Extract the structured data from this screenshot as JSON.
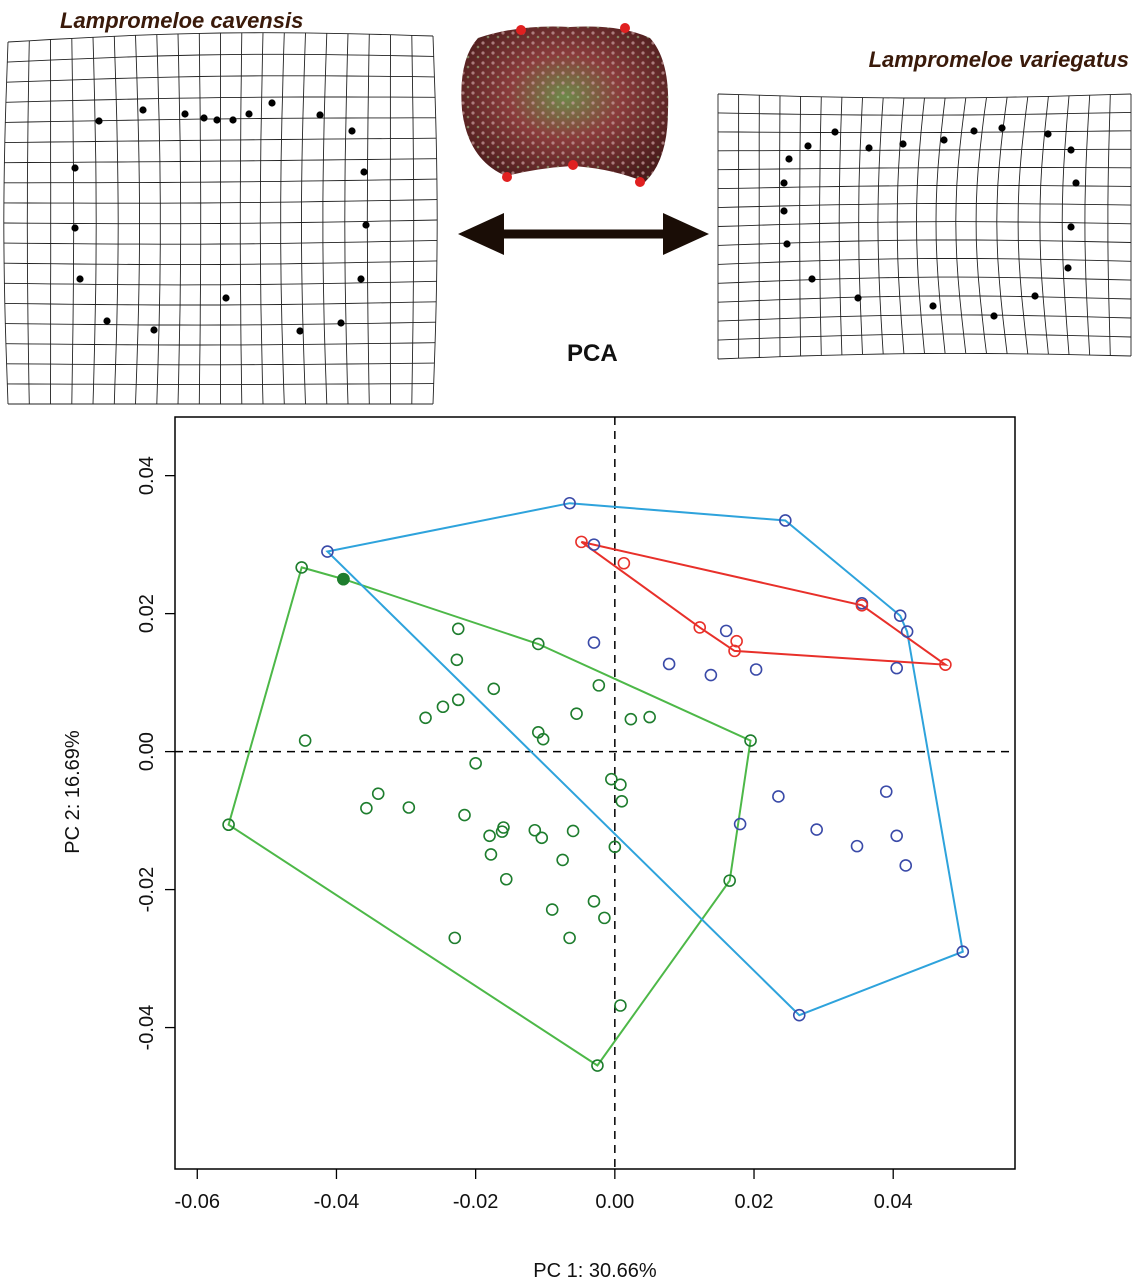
{
  "header": {
    "species_left": "Lampromeloe cavensis",
    "species_right": "Lampromeloe variegatus",
    "method_label": "PCA"
  },
  "colors": {
    "green_group": "#4db848",
    "green_points": "#1e7d2e",
    "blue_group": "#2ea3dc",
    "blue_points": "#3a4aa8",
    "red_group": "#e8302a",
    "arrow": "#1a0d06",
    "specimen_body": "#8a3c3c",
    "landmark": "#e02020"
  },
  "chart_data": {
    "type": "scatter",
    "title": "",
    "xlabel": "PC 1: 30.66%",
    "ylabel": "PC 2: 16.69%",
    "xlim": [
      -0.0632,
      0.0575
    ],
    "ylim": [
      -0.0605,
      0.0485
    ],
    "xticks": [
      -0.06,
      -0.04,
      -0.02,
      0.0,
      0.02,
      0.04
    ],
    "xtick_labels": [
      "-0.06",
      "-0.04",
      "-0.02",
      "0.00",
      "0.02",
      "0.04"
    ],
    "yticks": [
      -0.04,
      -0.02,
      0.0,
      0.02,
      0.04
    ],
    "ytick_labels": [
      "-0.04",
      "-0.02",
      "0.00",
      "0.02",
      "0.04"
    ],
    "reference_lines": {
      "x": 0,
      "y": 0,
      "style": "dashed"
    },
    "series": [
      {
        "color": "green",
        "points": [
          [
            -0.045,
            0.0267
          ],
          [
            -0.039,
            0.025
          ],
          [
            -0.0225,
            0.0178
          ],
          [
            -0.0227,
            0.0133
          ],
          [
            -0.011,
            0.0156
          ],
          [
            -0.0174,
            0.0091
          ],
          [
            -0.0023,
            0.0096
          ],
          [
            -0.0225,
            0.0075
          ],
          [
            -0.0247,
            0.0065
          ],
          [
            -0.0272,
            0.0049
          ],
          [
            -0.0055,
            0.0055
          ],
          [
            0.0023,
            0.0047
          ],
          [
            0.005,
            0.005
          ],
          [
            -0.011,
            0.0028
          ],
          [
            -0.0103,
            0.0018
          ],
          [
            -0.0445,
            0.0016
          ],
          [
            0.0195,
            0.0016
          ],
          [
            -0.02,
            -0.0017
          ],
          [
            -0.0005,
            -0.004
          ],
          [
            0.0008,
            -0.0048
          ],
          [
            -0.034,
            -0.0061
          ],
          [
            -0.0296,
            -0.0081
          ],
          [
            -0.0357,
            -0.0082
          ],
          [
            0.001,
            -0.0072
          ],
          [
            -0.0216,
            -0.0092
          ],
          [
            -0.016,
            -0.011
          ],
          [
            -0.0115,
            -0.0114
          ],
          [
            -0.0162,
            -0.0116
          ],
          [
            -0.006,
            -0.0115
          ],
          [
            -0.018,
            -0.0122
          ],
          [
            -0.0105,
            -0.0125
          ],
          [
            -0.0178,
            -0.0149
          ],
          [
            0.0,
            -0.0138
          ],
          [
            -0.0075,
            -0.0157
          ],
          [
            -0.0156,
            -0.0185
          ],
          [
            0.0165,
            -0.0187
          ],
          [
            -0.003,
            -0.0217
          ],
          [
            -0.009,
            -0.0229
          ],
          [
            -0.0015,
            -0.0241
          ],
          [
            -0.023,
            -0.027
          ],
          [
            -0.0065,
            -0.027
          ],
          [
            0.0008,
            -0.0368
          ],
          [
            -0.0025,
            -0.0455
          ],
          [
            -0.0555,
            -0.0106
          ]
        ],
        "hull": [
          [
            -0.045,
            0.0267
          ],
          [
            -0.039,
            0.025
          ],
          [
            -0.011,
            0.0156
          ],
          [
            0.0195,
            0.0016
          ],
          [
            0.0165,
            -0.0187
          ],
          [
            -0.0025,
            -0.0455
          ],
          [
            -0.0555,
            -0.0106
          ]
        ]
      },
      {
        "color": "blue",
        "points": [
          [
            -0.0413,
            0.029
          ],
          [
            -0.0065,
            0.036
          ],
          [
            0.0245,
            0.0335
          ],
          [
            -0.003,
            0.03
          ],
          [
            0.0355,
            0.0215
          ],
          [
            0.041,
            0.0197
          ],
          [
            0.042,
            0.0174
          ],
          [
            0.016,
            0.0175
          ],
          [
            -0.003,
            0.0158
          ],
          [
            0.0078,
            0.0127
          ],
          [
            0.0138,
            0.0111
          ],
          [
            0.0203,
            0.0119
          ],
          [
            0.0405,
            0.0121
          ],
          [
            0.0235,
            -0.0065
          ],
          [
            0.039,
            -0.0058
          ],
          [
            0.018,
            -0.0105
          ],
          [
            0.029,
            -0.0113
          ],
          [
            0.0348,
            -0.0137
          ],
          [
            0.0405,
            -0.0122
          ],
          [
            0.0418,
            -0.0165
          ],
          [
            0.05,
            -0.029
          ],
          [
            0.0265,
            -0.0382
          ]
        ],
        "hull": [
          [
            -0.0065,
            0.036
          ],
          [
            0.0245,
            0.0335
          ],
          [
            0.041,
            0.0197
          ],
          [
            0.042,
            0.0174
          ],
          [
            0.05,
            -0.029
          ],
          [
            0.0265,
            -0.0382
          ],
          [
            -0.0413,
            0.029
          ]
        ]
      },
      {
        "color": "red",
        "points": [
          [
            -0.0048,
            0.0304
          ],
          [
            0.0013,
            0.0273
          ],
          [
            0.0355,
            0.0212
          ],
          [
            0.0122,
            0.018
          ],
          [
            0.0175,
            0.016
          ],
          [
            0.0172,
            0.0146
          ],
          [
            0.0475,
            0.0126
          ]
        ],
        "hull": [
          [
            -0.0048,
            0.0304
          ],
          [
            0.0355,
            0.0212
          ],
          [
            0.0475,
            0.0126
          ],
          [
            0.0172,
            0.0146
          ],
          [
            0.0122,
            0.018
          ]
        ]
      }
    ],
    "filled_points": [
      {
        "series": "green",
        "point": [
          -0.039,
          0.025
        ]
      }
    ],
    "legend": "none"
  }
}
